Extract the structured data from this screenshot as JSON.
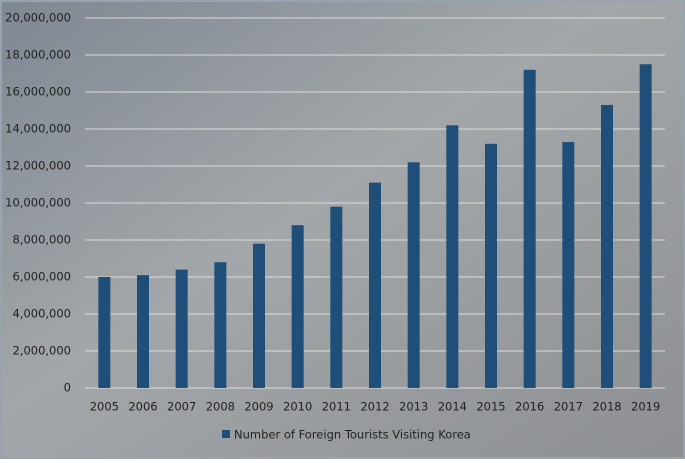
{
  "chart_data": {
    "type": "bar",
    "categories": [
      "2005",
      "2006",
      "2007",
      "2008",
      "2009",
      "2010",
      "2011",
      "2012",
      "2013",
      "2014",
      "2015",
      "2016",
      "2017",
      "2018",
      "2019"
    ],
    "series": [
      {
        "name": "Number of Foreign Tourists Visiting Korea",
        "color": "#1f4e79",
        "values": [
          6000000,
          6100000,
          6400000,
          6800000,
          7800000,
          8800000,
          9800000,
          11100000,
          12200000,
          14200000,
          13200000,
          17200000,
          13300000,
          15300000,
          17500000
        ]
      }
    ],
    "ylim": [
      0,
      20000000
    ],
    "yticks": [
      0,
      {
        "value": 2000000,
        "label": "2,000,000"
      },
      {
        "value": 4000000,
        "label": "4,000,000"
      },
      {
        "value": 6000000,
        "label": "6,000,000"
      },
      {
        "value": 8000000,
        "label": "8,000,000"
      },
      {
        "value": 10000000,
        "label": "10,000,000"
      },
      {
        "value": 12000000,
        "label": "12,000,000"
      },
      {
        "value": 14000000,
        "label": "14,000,000"
      },
      {
        "value": 16000000,
        "label": "16,000,000"
      },
      {
        "value": 18000000,
        "label": "18,000,000"
      },
      {
        "value": 20000000,
        "label": "20,000,000"
      }
    ],
    "grid": true,
    "legend": "bottom"
  }
}
